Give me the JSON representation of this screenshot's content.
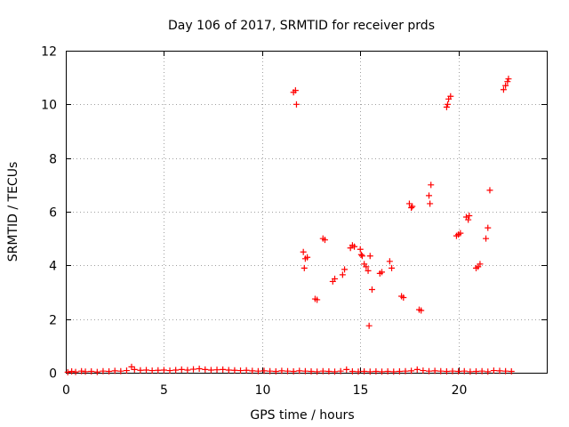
{
  "chart_data": {
    "type": "scatter",
    "title": "Day 106 of 2017, SRMTID for receiver prds",
    "xlabel": "GPS time / hours",
    "ylabel": "SRMTID / TECUs",
    "xlim": [
      0,
      24.5
    ],
    "ylim": [
      0,
      12
    ],
    "xticks": [
      0,
      5,
      10,
      15,
      20
    ],
    "yticks": [
      0,
      2,
      4,
      6,
      8,
      10,
      12
    ],
    "grid": true,
    "marker": "plus",
    "color": "#ff0000",
    "series": [
      {
        "points": [
          [
            0.1,
            0.02
          ],
          [
            0.3,
            0.05
          ],
          [
            0.5,
            0.03
          ],
          [
            0.8,
            0.06
          ],
          [
            1.0,
            0.04
          ],
          [
            1.3,
            0.05
          ],
          [
            1.6,
            0.03
          ],
          [
            1.9,
            0.06
          ],
          [
            2.2,
            0.05
          ],
          [
            2.5,
            0.07
          ],
          [
            2.8,
            0.06
          ],
          [
            3.1,
            0.08
          ],
          [
            3.35,
            0.22
          ],
          [
            3.5,
            0.12
          ],
          [
            3.8,
            0.09
          ],
          [
            4.1,
            0.1
          ],
          [
            4.4,
            0.08
          ],
          [
            4.7,
            0.09
          ],
          [
            5.0,
            0.1
          ],
          [
            5.3,
            0.08
          ],
          [
            5.6,
            0.1
          ],
          [
            5.9,
            0.12
          ],
          [
            6.2,
            0.1
          ],
          [
            6.5,
            0.13
          ],
          [
            6.8,
            0.15
          ],
          [
            7.1,
            0.12
          ],
          [
            7.4,
            0.1
          ],
          [
            7.7,
            0.11
          ],
          [
            8.0,
            0.12
          ],
          [
            8.3,
            0.1
          ],
          [
            8.6,
            0.09
          ],
          [
            8.9,
            0.08
          ],
          [
            9.2,
            0.09
          ],
          [
            9.5,
            0.07
          ],
          [
            9.8,
            0.06
          ],
          [
            10.1,
            0.07
          ],
          [
            10.4,
            0.06
          ],
          [
            10.7,
            0.05
          ],
          [
            11.0,
            0.07
          ],
          [
            11.3,
            0.06
          ],
          [
            11.6,
            0.05
          ],
          [
            11.9,
            0.07
          ],
          [
            12.2,
            0.06
          ],
          [
            12.5,
            0.05
          ],
          [
            12.8,
            0.04
          ],
          [
            13.1,
            0.06
          ],
          [
            13.4,
            0.05
          ],
          [
            13.7,
            0.04
          ],
          [
            14.0,
            0.06
          ],
          [
            14.3,
            0.12
          ],
          [
            14.6,
            0.05
          ],
          [
            14.9,
            0.04
          ],
          [
            15.2,
            0.05
          ],
          [
            15.5,
            0.04
          ],
          [
            15.8,
            0.05
          ],
          [
            16.1,
            0.04
          ],
          [
            16.4,
            0.05
          ],
          [
            16.7,
            0.04
          ],
          [
            17.0,
            0.05
          ],
          [
            17.3,
            0.06
          ],
          [
            17.6,
            0.07
          ],
          [
            17.9,
            0.12
          ],
          [
            18.2,
            0.08
          ],
          [
            18.5,
            0.06
          ],
          [
            18.8,
            0.07
          ],
          [
            19.1,
            0.06
          ],
          [
            19.4,
            0.05
          ],
          [
            19.7,
            0.06
          ],
          [
            20.0,
            0.05
          ],
          [
            20.3,
            0.06
          ],
          [
            20.6,
            0.04
          ],
          [
            20.9,
            0.05
          ],
          [
            21.2,
            0.06
          ],
          [
            21.5,
            0.04
          ],
          [
            21.8,
            0.08
          ],
          [
            22.1,
            0.07
          ],
          [
            22.4,
            0.06
          ],
          [
            22.7,
            0.05
          ],
          [
            11.6,
            10.45
          ],
          [
            11.7,
            10.52
          ],
          [
            11.75,
            10.0
          ],
          [
            12.1,
            4.5
          ],
          [
            12.15,
            3.9
          ],
          [
            12.2,
            4.25
          ],
          [
            12.3,
            4.3
          ],
          [
            12.7,
            2.75
          ],
          [
            12.8,
            2.72
          ],
          [
            13.1,
            5.0
          ],
          [
            13.2,
            4.95
          ],
          [
            13.6,
            3.4
          ],
          [
            13.7,
            3.5
          ],
          [
            14.1,
            3.65
          ],
          [
            14.2,
            3.85
          ],
          [
            14.5,
            4.65
          ],
          [
            14.6,
            4.75
          ],
          [
            14.7,
            4.7
          ],
          [
            15.0,
            4.6
          ],
          [
            15.05,
            4.4
          ],
          [
            15.1,
            4.35
          ],
          [
            15.2,
            4.05
          ],
          [
            15.3,
            3.95
          ],
          [
            15.4,
            3.8
          ],
          [
            15.45,
            1.75
          ],
          [
            15.5,
            4.35
          ],
          [
            15.6,
            3.1
          ],
          [
            16.0,
            3.7
          ],
          [
            16.1,
            3.75
          ],
          [
            16.5,
            4.15
          ],
          [
            16.6,
            3.9
          ],
          [
            17.1,
            2.85
          ],
          [
            17.2,
            2.8
          ],
          [
            17.5,
            6.3
          ],
          [
            17.6,
            6.15
          ],
          [
            17.65,
            6.2
          ],
          [
            18.0,
            2.35
          ],
          [
            18.1,
            2.32
          ],
          [
            18.5,
            6.6
          ],
          [
            18.55,
            6.3
          ],
          [
            18.6,
            7.0
          ],
          [
            19.4,
            9.9
          ],
          [
            19.45,
            10.0
          ],
          [
            19.5,
            10.2
          ],
          [
            19.6,
            10.3
          ],
          [
            19.9,
            5.1
          ],
          [
            20.0,
            5.15
          ],
          [
            20.1,
            5.2
          ],
          [
            20.4,
            5.8
          ],
          [
            20.5,
            5.7
          ],
          [
            20.55,
            5.85
          ],
          [
            20.9,
            3.9
          ],
          [
            21.0,
            3.95
          ],
          [
            21.1,
            4.05
          ],
          [
            21.4,
            5.0
          ],
          [
            21.5,
            5.4
          ],
          [
            21.6,
            6.8
          ],
          [
            22.3,
            10.55
          ],
          [
            22.4,
            10.7
          ],
          [
            22.5,
            10.85
          ],
          [
            22.55,
            10.95
          ]
        ]
      }
    ]
  }
}
